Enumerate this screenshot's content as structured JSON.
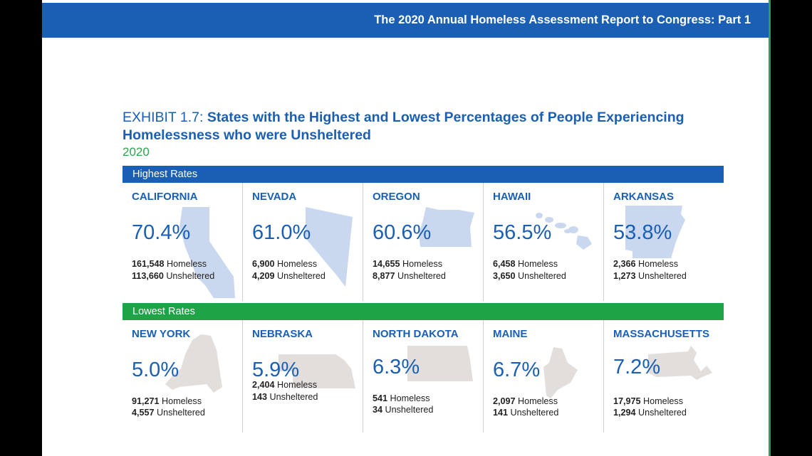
{
  "header": {
    "title": "The 2020 Annual Homeless Assessment Report to Congress: Part 1"
  },
  "exhibit": {
    "label": "EXHIBIT 1.7:",
    "title": "States with the Highest and Lowest Percentages of People Experiencing Homelessness who were Unsheltered",
    "year": "2020"
  },
  "colors": {
    "primary_blue": "#1a5fb4",
    "green": "#1ea346",
    "year_green": "#2aa84a",
    "high_shape": "#c9d8ee",
    "low_shape": "#e2dedb"
  },
  "sections": [
    {
      "label": "Highest Rates",
      "states": [
        {
          "name": "CALIFORNIA",
          "pct": "70.4%",
          "homeless": "161,548",
          "homeless_label": "Homeless",
          "unsheltered": "113,660",
          "unsheltered_label": "Unsheltered",
          "shape_icon": "california-shape"
        },
        {
          "name": "NEVADA",
          "pct": "61.0%",
          "homeless": "6,900",
          "homeless_label": "Homeless",
          "unsheltered": "4,209",
          "unsheltered_label": "Unsheltered",
          "shape_icon": "nevada-shape"
        },
        {
          "name": "OREGON",
          "pct": "60.6%",
          "homeless": "14,655",
          "homeless_label": "Homeless",
          "unsheltered": "8,877",
          "unsheltered_label": "Unsheltered",
          "shape_icon": "oregon-shape"
        },
        {
          "name": "HAWAII",
          "pct": "56.5%",
          "homeless": "6,458",
          "homeless_label": "Homeless",
          "unsheltered": "3,650",
          "unsheltered_label": "Unsheltered",
          "shape_icon": "hawaii-shape"
        },
        {
          "name": "ARKANSAS",
          "pct": "53.8%",
          "homeless": "2,366",
          "homeless_label": "Homeless",
          "unsheltered": "1,273",
          "unsheltered_label": "Unsheltered",
          "shape_icon": "arkansas-shape"
        }
      ]
    },
    {
      "label": "Lowest Rates",
      "states": [
        {
          "name": "NEW YORK",
          "pct": "5.0%",
          "homeless": "91,271",
          "homeless_label": "Homeless",
          "unsheltered": "4,557",
          "unsheltered_label": "Unsheltered",
          "shape_icon": "new-york-shape"
        },
        {
          "name": "NEBRASKA",
          "pct": "5.9%",
          "homeless": "2,404",
          "homeless_label": "Homeless",
          "unsheltered": "143",
          "unsheltered_label": "Unsheltered",
          "shape_icon": "nebraska-shape"
        },
        {
          "name": "NORTH DAKOTA",
          "pct": "6.3%",
          "homeless": "541",
          "homeless_label": "Homeless",
          "unsheltered": "34",
          "unsheltered_label": "Unsheltered",
          "shape_icon": "north-dakota-shape"
        },
        {
          "name": "MAINE",
          "pct": "6.7%",
          "homeless": "2,097",
          "homeless_label": "Homeless",
          "unsheltered": "141",
          "unsheltered_label": "Unsheltered",
          "shape_icon": "maine-shape"
        },
        {
          "name": "MASSACHUSETTS",
          "pct": "7.2%",
          "homeless": "17,975",
          "homeless_label": "Homeless",
          "unsheltered": "1,294",
          "unsheltered_label": "Unsheltered",
          "shape_icon": "massachusetts-shape"
        }
      ]
    }
  ]
}
